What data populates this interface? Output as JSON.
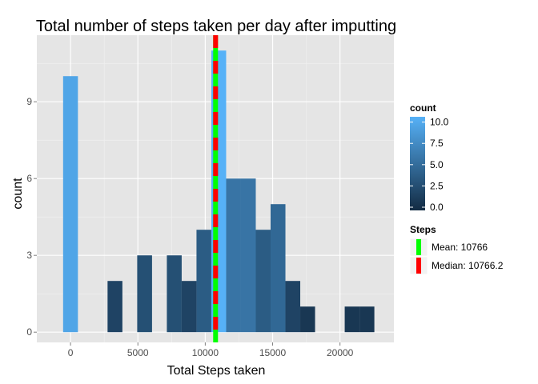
{
  "chart_data": {
    "type": "bar",
    "title": "Total number of steps taken per day after imputting",
    "xlabel": "Total Steps taken",
    "ylabel": "count",
    "xlim": [
      -2500,
      24000
    ],
    "ylim": [
      -0.4,
      11.6
    ],
    "x_ticks": [
      0,
      5000,
      10000,
      15000,
      20000
    ],
    "y_ticks": [
      0,
      3,
      6,
      9
    ],
    "binwidth": 1100,
    "bins": [
      {
        "x": 0,
        "count": 10
      },
      {
        "x": 2200,
        "count": 0
      },
      {
        "x": 3300,
        "count": 2
      },
      {
        "x": 4400,
        "count": 0
      },
      {
        "x": 5500,
        "count": 3
      },
      {
        "x": 6600,
        "count": 0
      },
      {
        "x": 7700,
        "count": 3
      },
      {
        "x": 8800,
        "count": 2
      },
      {
        "x": 9900,
        "count": 4
      },
      {
        "x": 11000,
        "count": 11
      },
      {
        "x": 12100,
        "count": 6
      },
      {
        "x": 13200,
        "count": 6
      },
      {
        "x": 14300,
        "count": 4
      },
      {
        "x": 15400,
        "count": 5
      },
      {
        "x": 16500,
        "count": 2
      },
      {
        "x": 17600,
        "count": 1
      },
      {
        "x": 20900,
        "count": 1
      },
      {
        "x": 22000,
        "count": 1
      }
    ],
    "vlines": [
      {
        "label": "Mean: 10766",
        "value": 10766,
        "color": "#00ff00",
        "dashed": false
      },
      {
        "label": "Median: 10766.2",
        "value": 10766.2,
        "color": "#ff0000",
        "dashed": true
      }
    ],
    "fill_scale": {
      "title": "count",
      "low_color": "#132b43",
      "high_color": "#56b1f7",
      "min": 0,
      "max": 11,
      "ticks": [
        "0.0",
        "2.5",
        "5.0",
        "7.5",
        "10.0"
      ]
    },
    "vline_legend_title": "Steps",
    "grid": true,
    "panel_background": "#e5e5e5",
    "grid_color": "#ffffff"
  }
}
